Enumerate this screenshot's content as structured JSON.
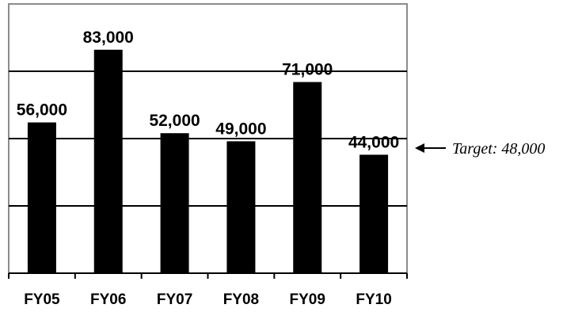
{
  "chart_data": {
    "type": "bar",
    "categories": [
      "FY05",
      "FY06",
      "FY07",
      "FY08",
      "FY09",
      "FY10"
    ],
    "values": [
      56000,
      83000,
      52000,
      49000,
      71000,
      44000
    ],
    "data_labels": [
      "56,000",
      "83,000",
      "52,000",
      "49,000",
      "71,000",
      "44,000"
    ],
    "title": "",
    "xlabel": "",
    "ylabel": "",
    "ylim": [
      0,
      100000
    ],
    "gridlines": [
      25000,
      50000,
      75000
    ],
    "grid": true,
    "legend": "none",
    "bar_color": "#000000",
    "annotation": {
      "text": "Target: 48,000",
      "value": 48000
    }
  }
}
